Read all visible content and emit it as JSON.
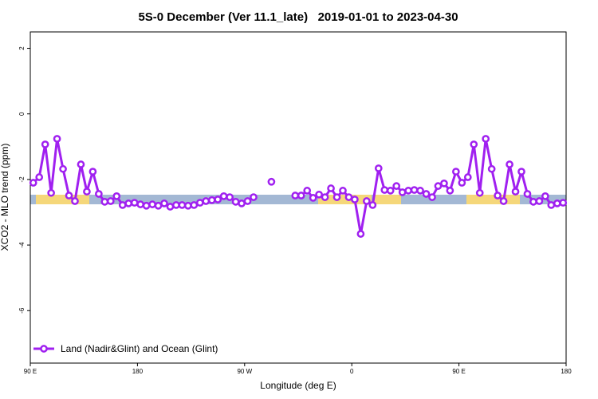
{
  "chart_data": {
    "type": "line",
    "title": "5S-0 December (Ver 11.1_late)   2019-01-01 to 2023-04-30",
    "x_label": "Longitude (deg E)",
    "y_label": "XCO2 - MLO trend (ppm)",
    "x": [
      92.5,
      97.5,
      102.5,
      107.5,
      112.5,
      117.5,
      122.5,
      127.5,
      132.5,
      137.5,
      142.5,
      147.5,
      152.5,
      157.5,
      162.5,
      167.5,
      172.5,
      177.5,
      182.5,
      187.5,
      192.5,
      197.5,
      202.5,
      207.5,
      212.5,
      217.5,
      222.5,
      227.5,
      232.5,
      237.5,
      242.5,
      247.5,
      252.5,
      257.5,
      262.5,
      267.5,
      272.5,
      277.5,
      282.5,
      287.5,
      292.5,
      297.5,
      302.5,
      307.5,
      312.5,
      317.5,
      322.5,
      327.5,
      332.5,
      337.5,
      342.5,
      347.5,
      352.5,
      357.5,
      362.5,
      367.5,
      372.5,
      377.5,
      382.5,
      387.5,
      392.5,
      397.5,
      402.5,
      407.5,
      412.5,
      417.5,
      422.5,
      427.5,
      432.5,
      437.5,
      442.5,
      447.5,
      452.5,
      457.5,
      462.5,
      467.5,
      472.5,
      477.5,
      482.5,
      487.5,
      492.5,
      497.5,
      502.5,
      507.5,
      512.5,
      517.5,
      522.5,
      527.5,
      532.5,
      537.5
    ],
    "series": [
      {
        "name": "Land (Nadir&Glint) and Ocean (Glint)",
        "color": "#a020f0",
        "values": [
          -2.1,
          -1.93,
          -0.93,
          -2.41,
          -0.76,
          -1.68,
          -2.49,
          -2.66,
          -1.54,
          -2.37,
          -1.76,
          -2.44,
          -2.68,
          -2.66,
          -2.51,
          -2.78,
          -2.73,
          -2.71,
          -2.76,
          -2.8,
          -2.76,
          -2.8,
          -2.73,
          -2.83,
          -2.78,
          -2.78,
          -2.8,
          -2.78,
          -2.71,
          -2.66,
          -2.63,
          -2.61,
          -2.51,
          -2.54,
          -2.68,
          -2.73,
          -2.66,
          -2.54,
          null,
          null,
          -2.07,
          null,
          null,
          null,
          -2.49,
          -2.49,
          -2.34,
          -2.56,
          -2.46,
          -2.54,
          -2.27,
          -2.54,
          -2.34,
          -2.54,
          -2.61,
          -3.66,
          -2.66,
          -2.78,
          -1.66,
          -2.32,
          -2.34,
          -2.2,
          -2.39,
          -2.34,
          -2.32,
          -2.34,
          -2.44,
          -2.54,
          -2.2,
          -2.12,
          -2.34,
          -1.76,
          -2.1,
          -1.93,
          -0.93,
          -2.41,
          -0.76,
          -1.68,
          -2.49,
          -2.66,
          -1.54,
          -2.37,
          -1.76,
          -2.44,
          -2.68,
          -2.66,
          -2.51,
          -2.78,
          -2.73,
          -2.71
        ]
      }
    ],
    "xlim": [
      90,
      540
    ],
    "xticks": [
      {
        "value": 90,
        "label": "90 E"
      },
      180,
      {
        "value": 270,
        "label": "90 W"
      },
      {
        "value": 360,
        "label": "0"
      },
      {
        "value": 450,
        "label": "90 E"
      },
      {
        "value": 540,
        "label": "180"
      }
    ],
    "ylim": [
      -7.6,
      2.5
    ],
    "yticks": [
      -6,
      -4,
      -2,
      0,
      2
    ],
    "legend": "bottomleft"
  }
}
